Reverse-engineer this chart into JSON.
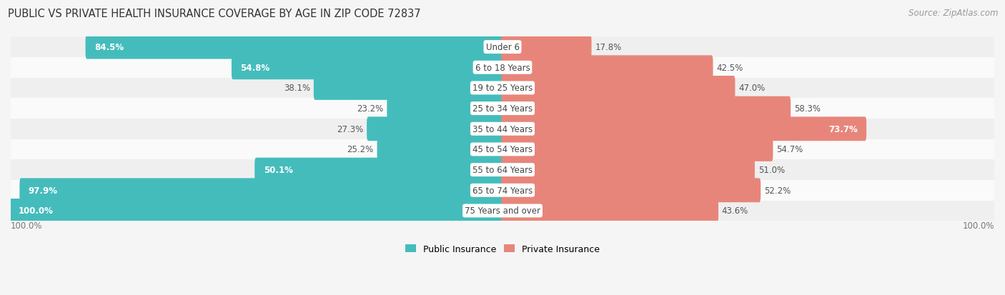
{
  "title": "PUBLIC VS PRIVATE HEALTH INSURANCE COVERAGE BY AGE IN ZIP CODE 72837",
  "source": "Source: ZipAtlas.com",
  "categories": [
    "Under 6",
    "6 to 18 Years",
    "19 to 25 Years",
    "25 to 34 Years",
    "35 to 44 Years",
    "45 to 54 Years",
    "55 to 64 Years",
    "65 to 74 Years",
    "75 Years and over"
  ],
  "public_values": [
    84.5,
    54.8,
    38.1,
    23.2,
    27.3,
    25.2,
    50.1,
    97.9,
    100.0
  ],
  "private_values": [
    17.8,
    42.5,
    47.0,
    58.3,
    73.7,
    54.7,
    51.0,
    52.2,
    43.6
  ],
  "public_color": "#45BCBC",
  "private_color": "#E8857A",
  "row_bg_even": "#EFEFEF",
  "row_bg_odd": "#FAFAFA",
  "bar_height": 0.58,
  "max_value": 100.0,
  "title_fontsize": 10.5,
  "label_fontsize": 8.5,
  "value_fontsize": 8.5,
  "legend_fontsize": 9,
  "source_fontsize": 8.5,
  "pub_white_threshold": 45,
  "priv_white_threshold": 65
}
